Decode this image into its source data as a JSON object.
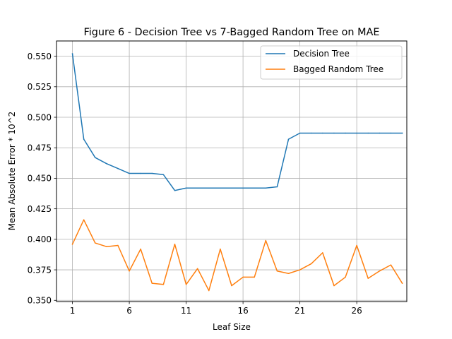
{
  "chart_data": {
    "type": "line",
    "title": "Figure 6 - Decision Tree vs 7-Bagged Random Tree on MAE",
    "xlabel": "Leaf Size",
    "ylabel": "Mean Absolute Error * 10^2",
    "xlim": [
      -0.4,
      30.4
    ],
    "ylim": [
      0.349,
      0.5625
    ],
    "x_ticks": [
      1,
      6,
      11,
      16,
      21,
      26
    ],
    "y_ticks": [
      0.35,
      0.375,
      0.4,
      0.425,
      0.45,
      0.475,
      0.5,
      0.525,
      0.55
    ],
    "y_tick_labels": [
      "0.350",
      "0.375",
      "0.400",
      "0.425",
      "0.450",
      "0.475",
      "0.500",
      "0.525",
      "0.550"
    ],
    "grid": true,
    "legend_position": "top-right",
    "x": [
      1,
      2,
      3,
      4,
      5,
      6,
      7,
      8,
      9,
      10,
      11,
      12,
      13,
      14,
      15,
      16,
      17,
      18,
      19,
      20,
      21,
      22,
      23,
      24,
      25,
      26,
      27,
      28,
      29,
      30
    ],
    "series": [
      {
        "name": "Decision Tree",
        "color": "#1f77b4",
        "values": [
          0.552,
          0.482,
          0.467,
          0.462,
          0.458,
          0.454,
          0.454,
          0.454,
          0.453,
          0.44,
          0.442,
          0.442,
          0.442,
          0.442,
          0.442,
          0.442,
          0.442,
          0.442,
          0.443,
          0.482,
          0.487,
          0.487,
          0.487,
          0.487,
          0.487,
          0.487,
          0.487,
          0.487,
          0.487,
          0.487
        ]
      },
      {
        "name": "Bagged Random Tree",
        "color": "#ff7f0e",
        "values": [
          0.396,
          0.416,
          0.397,
          0.394,
          0.395,
          0.374,
          0.392,
          0.364,
          0.363,
          0.396,
          0.363,
          0.376,
          0.358,
          0.392,
          0.362,
          0.369,
          0.369,
          0.399,
          0.374,
          0.372,
          0.375,
          0.38,
          0.389,
          0.362,
          0.369,
          0.395,
          0.368,
          0.374,
          0.379,
          0.364
        ]
      }
    ]
  }
}
